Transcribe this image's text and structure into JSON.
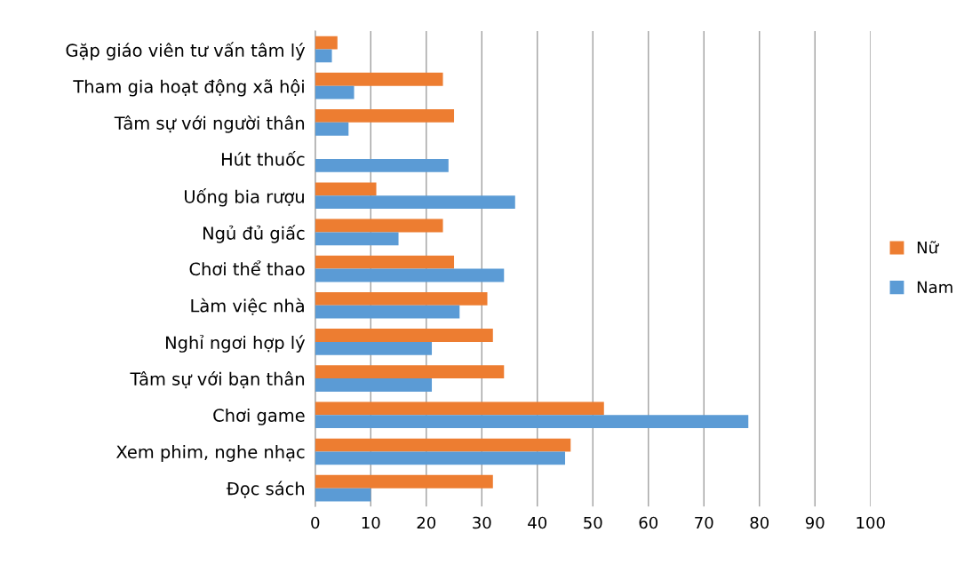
{
  "chart_data": {
    "type": "bar",
    "orientation": "horizontal",
    "categories": [
      "Gặp giáo viên tư vấn tâm lý",
      "Tham gia hoạt động xã hội",
      "Tâm sự với người thân",
      "Hút thuốc",
      "Uống bia rượu",
      "Ngủ đủ giấc",
      "Chơi thể thao",
      "Làm việc nhà",
      "Nghỉ ngơi hợp lý",
      "Tâm sự với bạn thân",
      "Chơi game",
      "Xem phim, nghe nhạc",
      "Đọc sách"
    ],
    "series": [
      {
        "name": "Nữ",
        "color": "#ed7d31",
        "values": [
          4,
          23,
          25,
          0,
          11,
          23,
          25,
          31,
          32,
          34,
          52,
          46,
          32
        ]
      },
      {
        "name": "Nam",
        "color": "#5b9bd5",
        "values": [
          3,
          7,
          6,
          24,
          36,
          15,
          34,
          26,
          21,
          21,
          78,
          45,
          10
        ]
      }
    ],
    "xlim": [
      0,
      100
    ],
    "xticks": [
      0,
      10,
      20,
      30,
      40,
      50,
      60,
      70,
      80,
      90,
      100
    ],
    "grid": "x",
    "legend": "right"
  }
}
